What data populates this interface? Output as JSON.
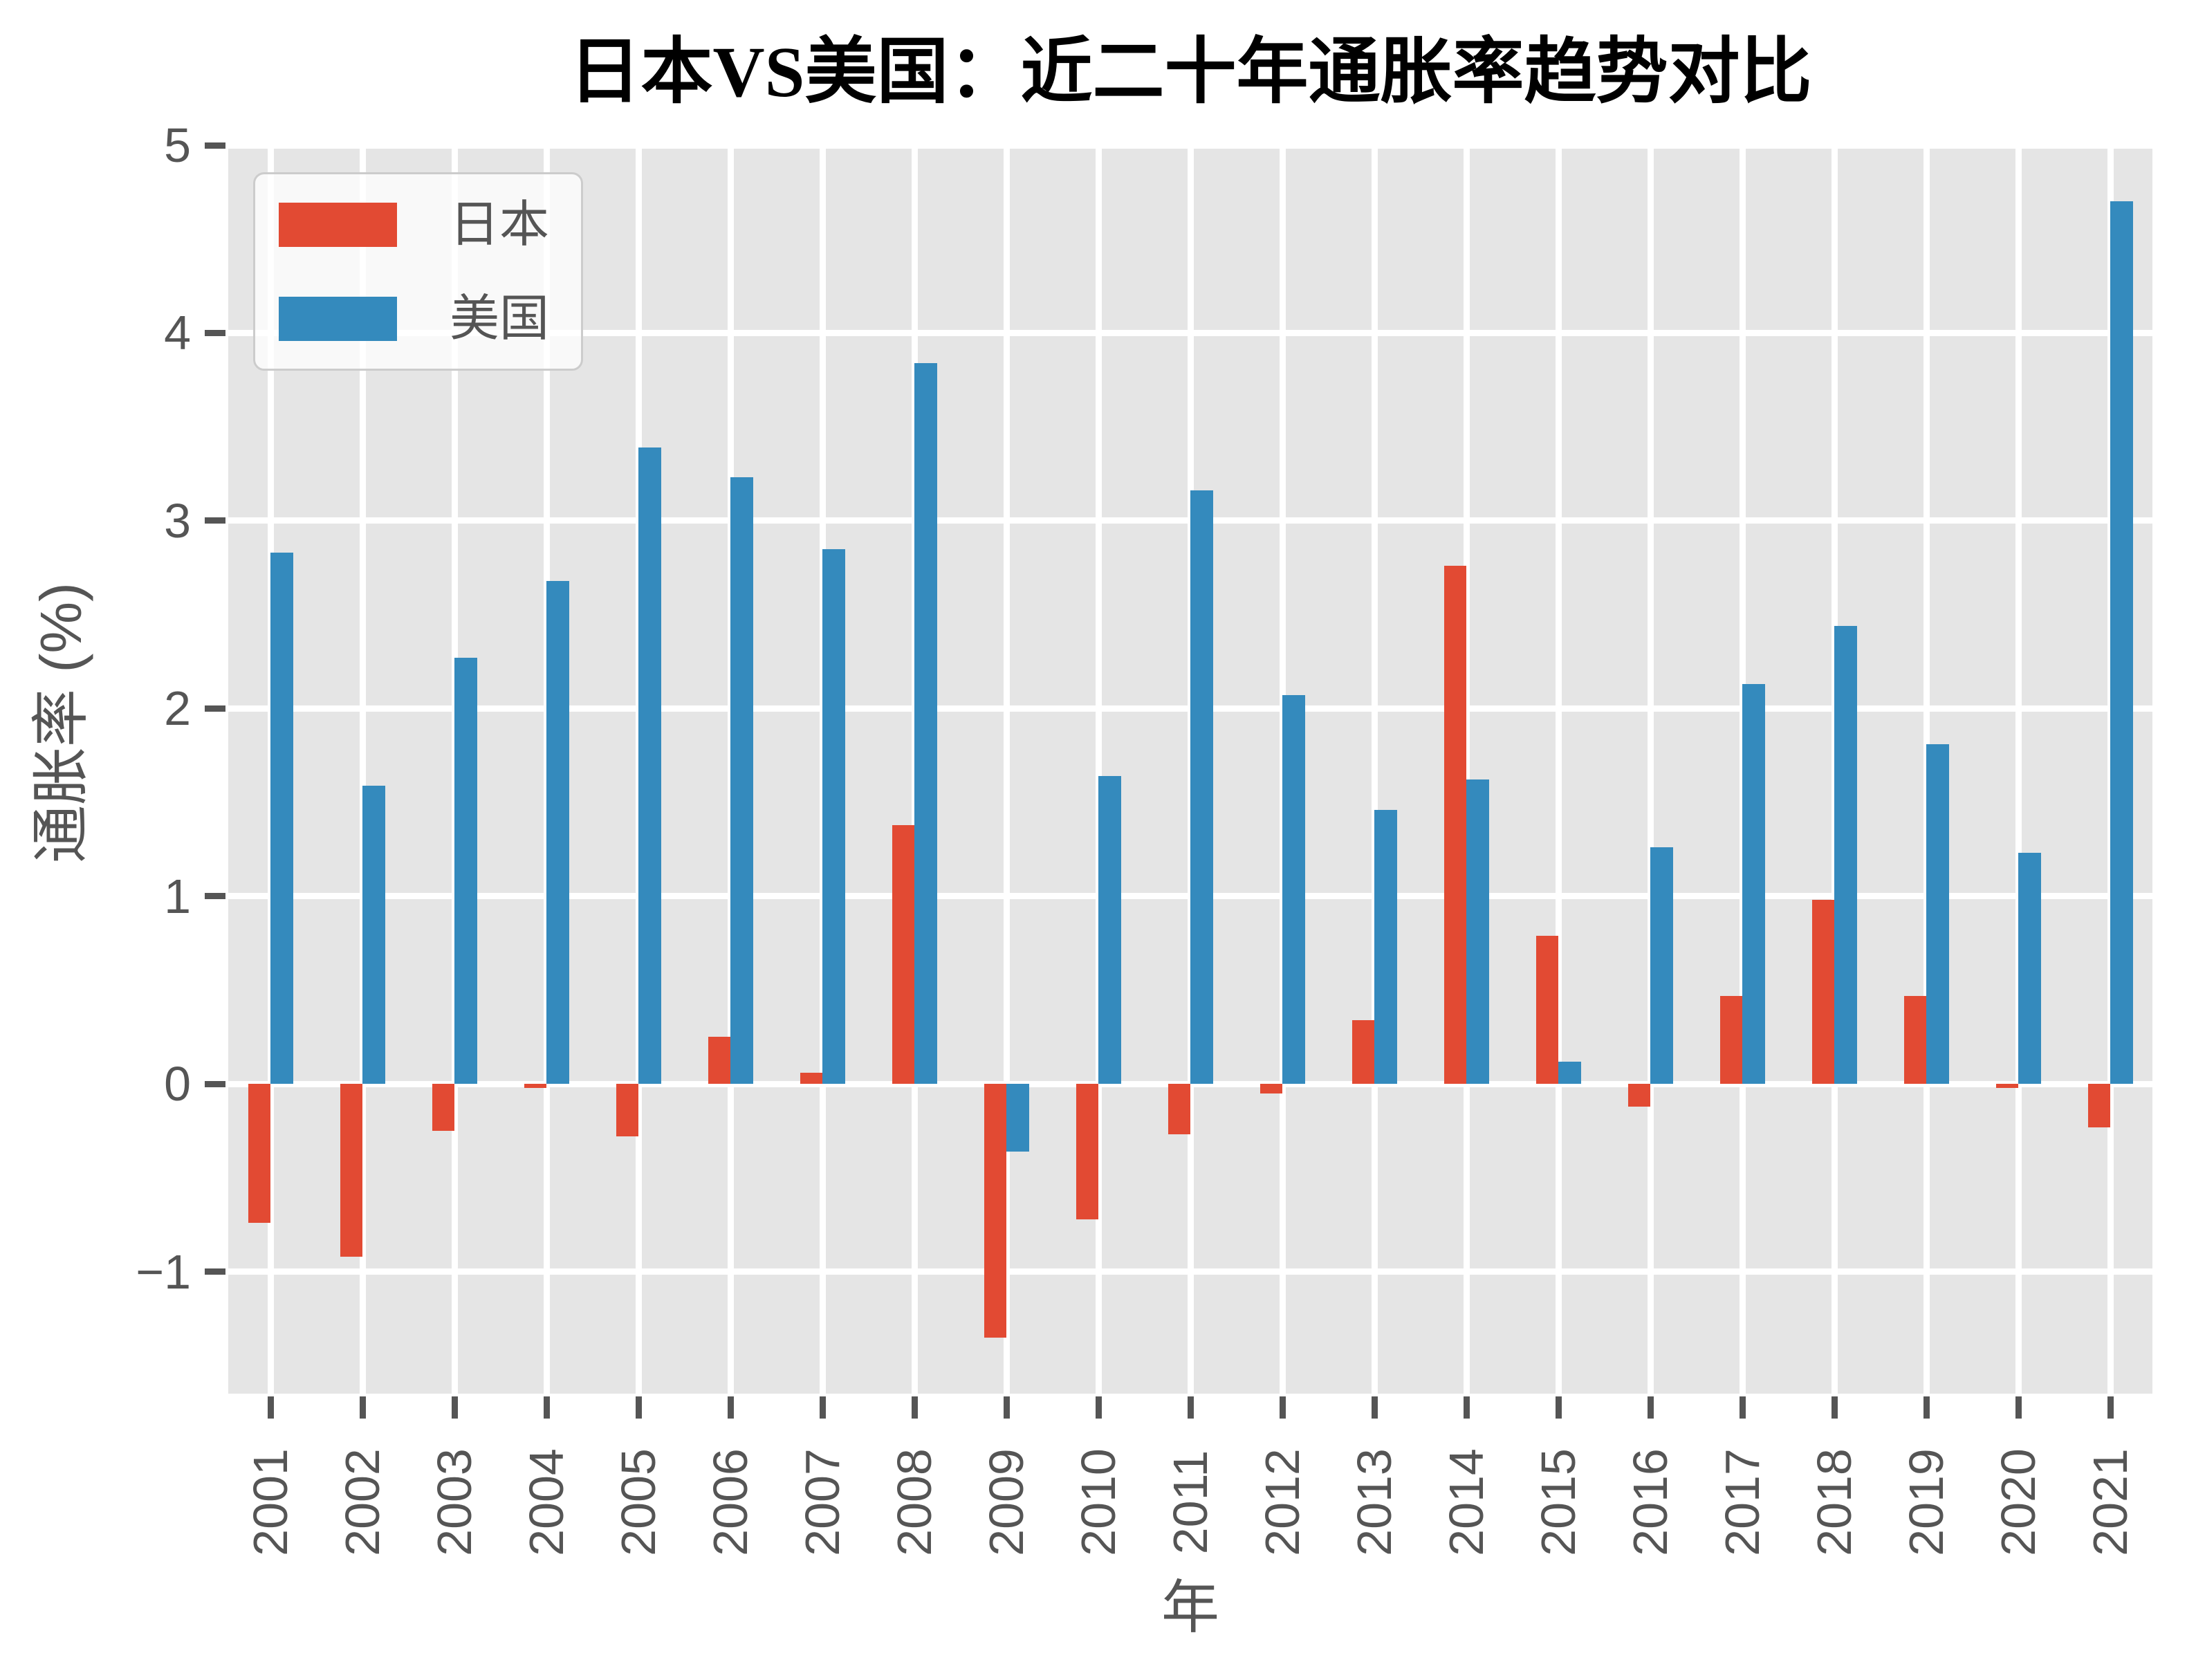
{
  "chart_data": {
    "type": "bar",
    "title": "日本VS美国：近二十年通胀率趋势对比",
    "xlabel": "年",
    "ylabel": "通胀率 (%)",
    "categories": [
      "2001",
      "2002",
      "2003",
      "2004",
      "2005",
      "2006",
      "2007",
      "2008",
      "2009",
      "2010",
      "2011",
      "2012",
      "2013",
      "2014",
      "2015",
      "2016",
      "2017",
      "2018",
      "2019",
      "2020",
      "2021"
    ],
    "series": [
      {
        "name": "日本",
        "color": "#E24A33",
        "values": [
          -0.74,
          -0.92,
          -0.25,
          -0.02,
          -0.28,
          0.25,
          0.06,
          1.38,
          -1.35,
          -0.72,
          -0.27,
          -0.05,
          0.34,
          2.76,
          0.79,
          -0.12,
          0.47,
          0.98,
          0.47,
          -0.02,
          -0.23
        ]
      },
      {
        "name": "美国",
        "color": "#348ABD",
        "values": [
          2.83,
          1.59,
          2.27,
          2.68,
          3.39,
          3.23,
          2.85,
          3.84,
          -0.36,
          1.64,
          3.16,
          2.07,
          1.46,
          1.62,
          0.12,
          1.26,
          2.13,
          2.44,
          1.81,
          1.23,
          4.7
        ]
      }
    ],
    "ylim": [
      -1.65,
      5.0
    ],
    "ytick_values": [
      -1,
      0,
      1,
      2,
      3,
      4,
      5
    ],
    "ytick_labels": [
      "−1",
      "0",
      "1",
      "2",
      "3",
      "4",
      "5"
    ],
    "grid": true,
    "legend_position": "upper left"
  },
  "colors": {
    "figure_bg": "#FFFFFF",
    "plot_bg": "#E5E5E5",
    "gridline": "#FFFFFF",
    "tick_and_text": "#555555",
    "title_text": "#000000",
    "japan_bar": "#E24A33",
    "usa_bar": "#348ABD",
    "legend_bg": "rgba(255,255,255,0.75)",
    "legend_border": "#CCCCCC"
  }
}
